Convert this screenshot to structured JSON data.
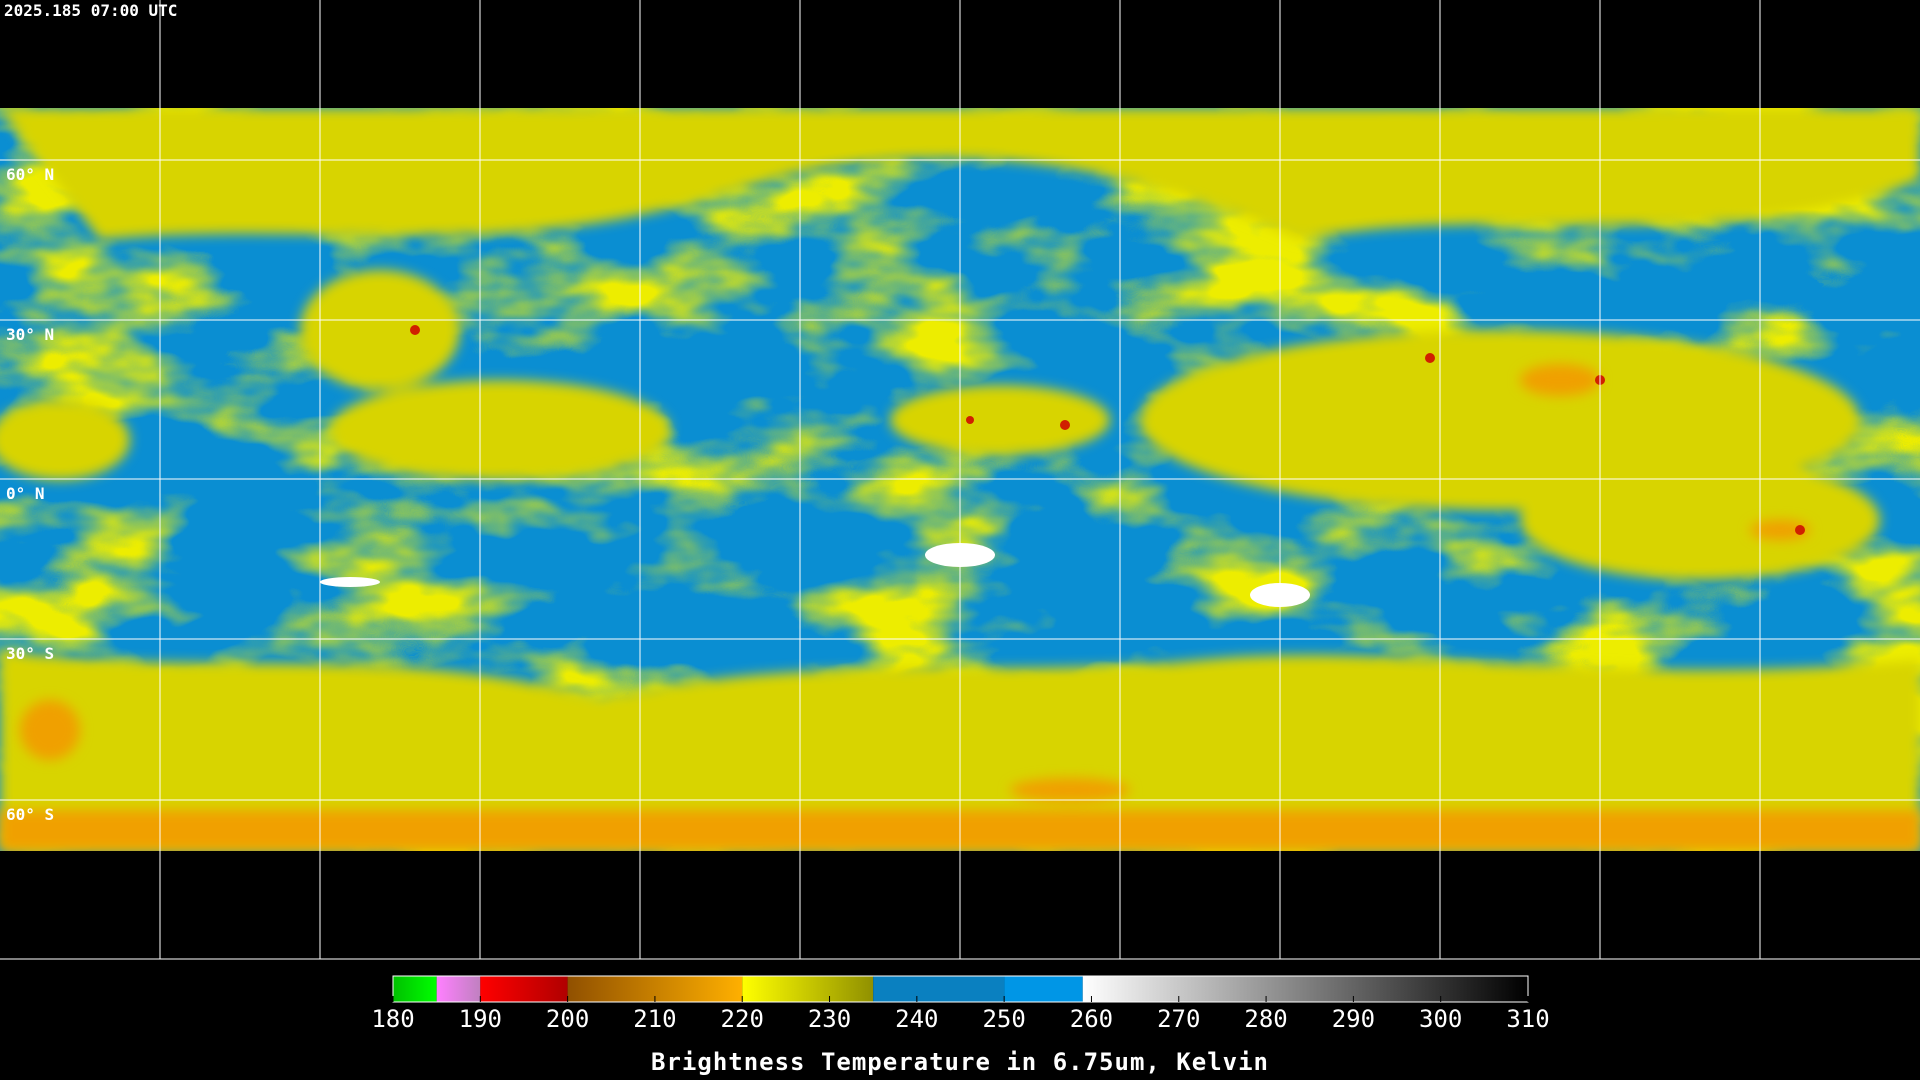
{
  "header": {
    "timestamp": "2025.185 07:00 UTC"
  },
  "map": {
    "latitude_labels": [
      "60° N",
      "30° N",
      "0° N",
      "30° S",
      "60° S"
    ]
  },
  "colorbar": {
    "title": "Brightness Temperature in 6.75um, Kelvin",
    "range": [
      180,
      310
    ],
    "ticks": [
      180,
      190,
      200,
      210,
      220,
      230,
      240,
      250,
      260,
      270,
      280,
      290,
      300,
      310
    ],
    "segments": [
      {
        "from": 180,
        "to": 185,
        "colors": [
          "#00c000",
          "#00ff00"
        ]
      },
      {
        "from": 185,
        "to": 190,
        "colors": [
          "#ff80ff",
          "#c080c0"
        ]
      },
      {
        "from": 190,
        "to": 200,
        "colors": [
          "#ff0000",
          "#b00000"
        ]
      },
      {
        "from": 200,
        "to": 220,
        "colors": [
          "#905000",
          "#ffb000"
        ]
      },
      {
        "from": 220,
        "to": 235,
        "colors": [
          "#ffff00",
          "#909000"
        ]
      },
      {
        "from": 235,
        "to": 250,
        "colors": [
          "#0a80c0",
          "#0a80c0"
        ]
      },
      {
        "from": 250,
        "to": 259,
        "colors": [
          "#0096e6",
          "#0096e6"
        ]
      },
      {
        "from": 259,
        "to": 310,
        "colors": [
          "#ffffff",
          "#000000"
        ]
      }
    ]
  }
}
